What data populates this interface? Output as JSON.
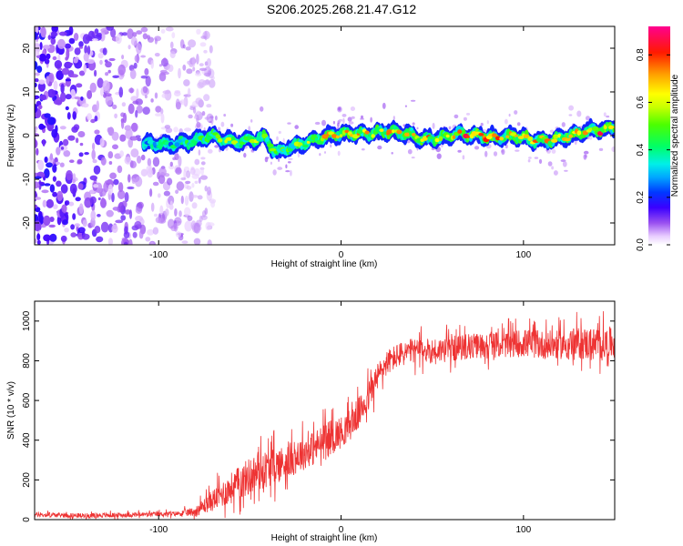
{
  "title": "S206.2025.268.21.47.G12",
  "chart_data": [
    {
      "type": "heatmap",
      "xlabel": "Height of straight line (km)",
      "ylabel": "Frequency (Hz)",
      "xlim": [
        -168,
        150
      ],
      "ylim": [
        -25,
        25
      ],
      "xticks": [
        -100,
        0,
        100
      ],
      "xtick_labels": [
        "-100",
        "0",
        "100"
      ],
      "yticks": [
        -20,
        -10,
        0,
        10,
        20
      ],
      "ytick_labels": [
        "-20",
        "-10",
        "0",
        "10",
        "20"
      ],
      "colorbar": {
        "label": "Normalized spectral amplitude",
        "range": [
          0,
          0.92
        ],
        "ticks": [
          0,
          0.2,
          0.4,
          0.6,
          0.8
        ],
        "tick_labels": [
          "0.0",
          "0.2",
          "0.4",
          "0.6",
          "0.8"
        ],
        "colors": [
          "#f0e0ff",
          "#8a3cf0",
          "#2b00ff",
          "#0050ff",
          "#00e0ff",
          "#00ff40",
          "#a0ff00",
          "#ffff00",
          "#ff9900",
          "#ff0000",
          "#ff00a0"
        ]
      },
      "track": {
        "x": [
          -108,
          -95,
          -85,
          -78,
          -72,
          -65,
          -58,
          -50,
          -42,
          -35,
          -30,
          -22,
          -15,
          -5,
          5,
          15,
          25,
          35,
          45,
          55,
          65,
          75,
          85,
          95,
          105,
          115,
          125,
          135,
          145,
          150
        ],
        "y": [
          -2,
          -2,
          -1.5,
          -1,
          0,
          -1,
          -1.5,
          -1,
          -0.5,
          -4,
          -3,
          -2,
          -1,
          0,
          0.5,
          0.5,
          1,
          0.5,
          -1,
          -0.5,
          0.5,
          0,
          -0.5,
          0,
          -1,
          -1,
          0,
          1,
          1.5,
          2
        ],
        "amplitude": [
          0.35,
          0.4,
          0.45,
          0.5,
          0.6,
          0.55,
          0.55,
          0.6,
          0.6,
          0.5,
          0.55,
          0.6,
          0.65,
          0.7,
          0.72,
          0.7,
          0.72,
          0.68,
          0.75,
          0.8,
          0.85,
          0.8,
          0.78,
          0.7,
          0.72,
          0.7,
          0.75,
          0.8,
          0.85,
          0.8
        ]
      },
      "noise_region_x": [
        -168,
        -80
      ]
    },
    {
      "type": "line",
      "xlabel": "Height of straight line (km)",
      "ylabel": "SNR (10 * v/v)",
      "xlim": [
        -168,
        150
      ],
      "ylim": [
        0,
        1100
      ],
      "xticks": [
        -100,
        0,
        100
      ],
      "xtick_labels": [
        "-100",
        "0",
        "100"
      ],
      "yticks": [
        0,
        200,
        400,
        600,
        800,
        1000
      ],
      "ytick_labels": [
        "0",
        "200",
        "400",
        "600",
        "800",
        "1000"
      ],
      "series": [
        {
          "name": "SNR",
          "color": "#ee3333",
          "x": [
            -168,
            -140,
            -110,
            -90,
            -80,
            -70,
            -60,
            -50,
            -45,
            -40,
            -30,
            -20,
            -15,
            -10,
            -5,
            0,
            5,
            10,
            15,
            20,
            25,
            30,
            35,
            40,
            50,
            60,
            70,
            80,
            90,
            100,
            110,
            120,
            130,
            140,
            150
          ],
          "y": [
            25,
            20,
            25,
            30,
            40,
            100,
            160,
            220,
            240,
            260,
            290,
            340,
            360,
            390,
            420,
            440,
            480,
            540,
            620,
            720,
            790,
            820,
            840,
            850,
            850,
            860,
            870,
            880,
            880,
            890,
            880,
            880,
            890,
            880,
            890
          ],
          "noise": [
            15,
            15,
            15,
            15,
            30,
            70,
            100,
            120,
            120,
            120,
            110,
            110,
            110,
            110,
            110,
            100,
            100,
            100,
            100,
            90,
            80,
            80,
            80,
            80,
            80,
            80,
            80,
            80,
            80,
            90,
            90,
            90,
            100,
            110,
            100
          ]
        }
      ]
    }
  ]
}
